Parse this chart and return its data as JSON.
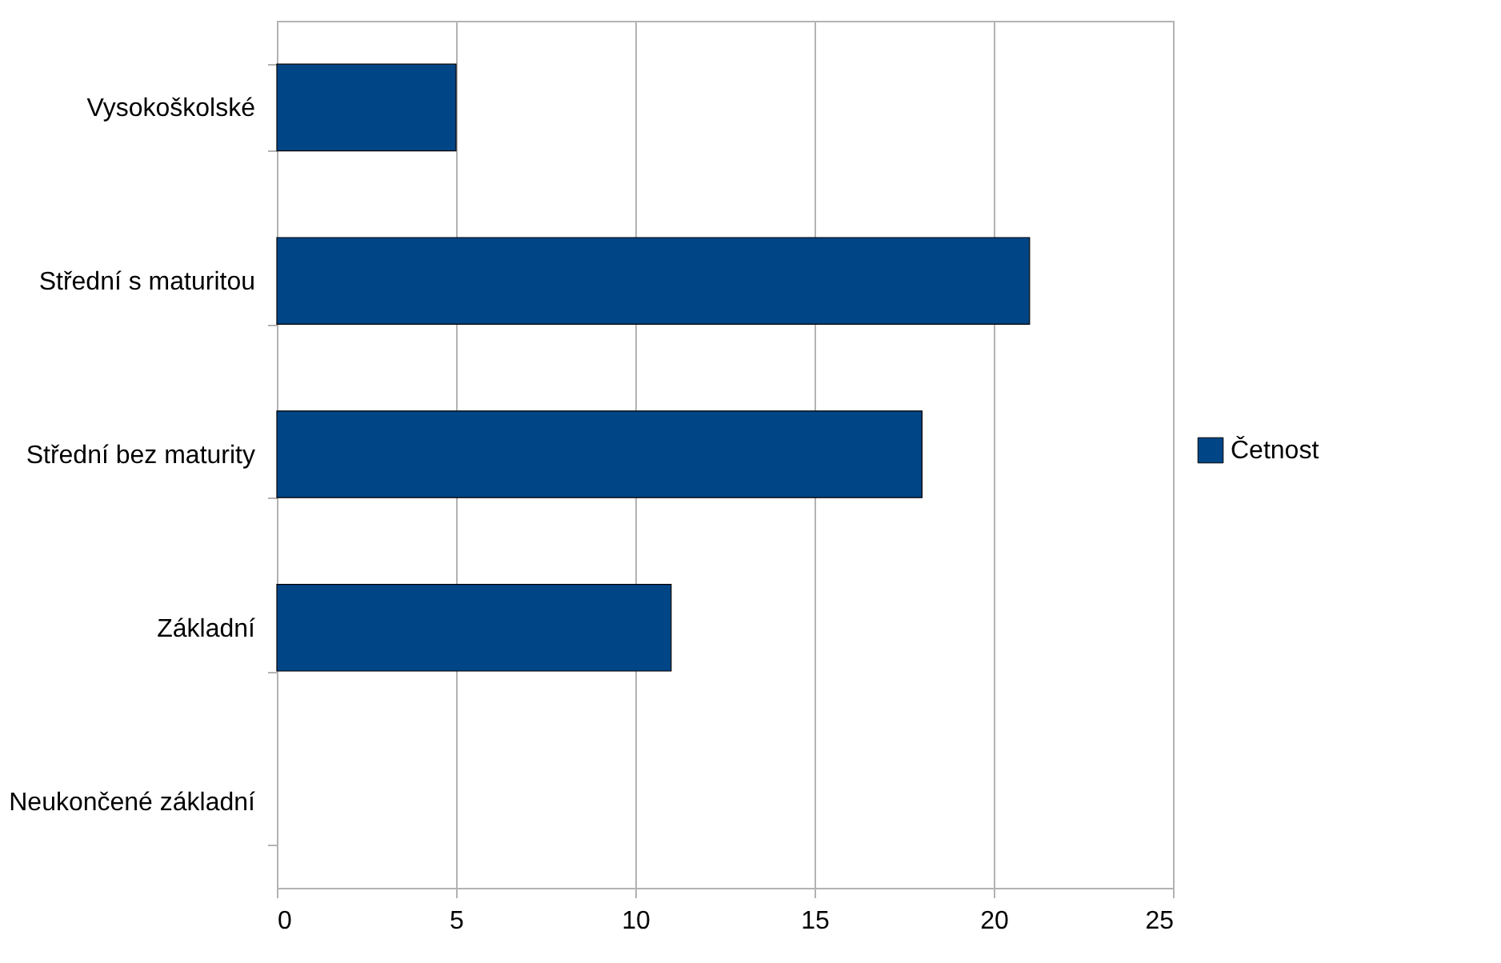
{
  "chart_data": {
    "type": "bar",
    "orientation": "horizontal",
    "categories": [
      "Vysokoškolské",
      "Střední s maturitou",
      "Střední bez maturity",
      "Základní",
      "Neukončené základní"
    ],
    "series": [
      {
        "name": "Četnost",
        "color": "#004586",
        "values": [
          5,
          21,
          18,
          11,
          0
        ]
      }
    ],
    "xlim": [
      0,
      25
    ],
    "xticks": [
      0,
      5,
      10,
      15,
      20,
      25
    ],
    "grid": "x",
    "legend": "right"
  }
}
